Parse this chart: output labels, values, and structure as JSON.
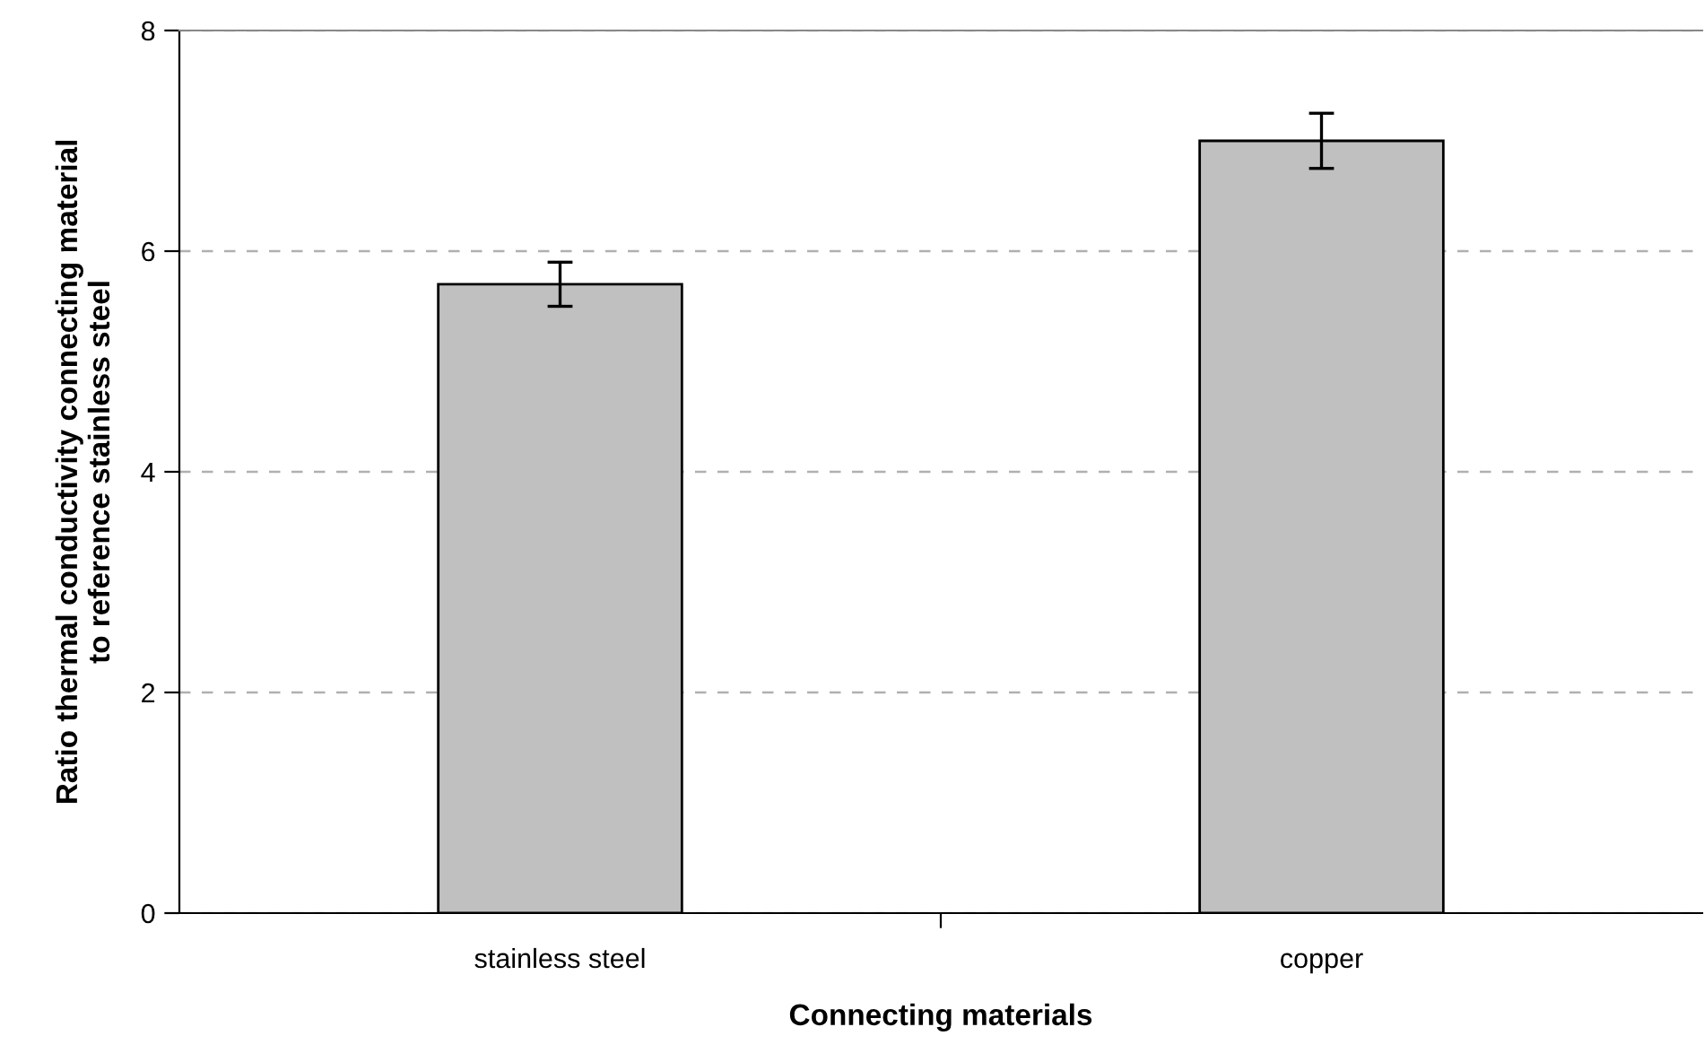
{
  "chart_data": {
    "type": "bar",
    "xlabel": "Connecting materials",
    "ylabel": "Ratio thermal conductivity connecting material\nto reference stainless steel",
    "categories": [
      "stainless steel",
      "copper"
    ],
    "values": [
      5.7,
      7.0
    ],
    "errors": [
      0.2,
      0.25
    ],
    "color": "#c0c0c0",
    "ylim": [
      0,
      8
    ],
    "yticks": [
      0,
      2,
      4,
      6,
      8
    ],
    "grid": "y"
  }
}
